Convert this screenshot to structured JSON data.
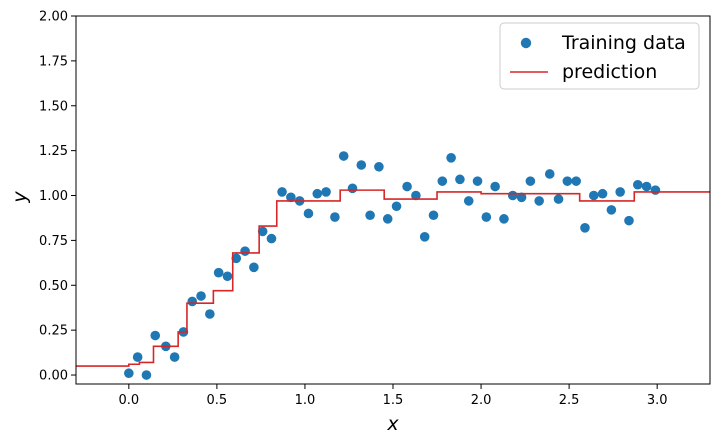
{
  "chart_data": {
    "type": "scatter",
    "title": "",
    "xlabel": "x",
    "ylabel": "y",
    "xlim": [
      -0.3,
      3.3
    ],
    "ylim": [
      -0.05,
      2.0
    ],
    "x_ticks": [
      "0.0",
      "0.5",
      "1.0",
      "1.5",
      "2.0",
      "2.5",
      "3.0"
    ],
    "y_ticks": [
      "0.00",
      "0.25",
      "0.50",
      "0.75",
      "1.00",
      "1.25",
      "1.50",
      "1.75",
      "2.00"
    ],
    "grid": false,
    "legend_position": "top-right",
    "colors": {
      "training": "#1f77b4",
      "prediction": "#d62728"
    },
    "series": [
      {
        "name": "Training data",
        "kind": "scatter",
        "points": [
          [
            0.0,
            0.01
          ],
          [
            0.05,
            0.1
          ],
          [
            0.1,
            0.0
          ],
          [
            0.15,
            0.22
          ],
          [
            0.21,
            0.16
          ],
          [
            0.26,
            0.1
          ],
          [
            0.31,
            0.24
          ],
          [
            0.36,
            0.41
          ],
          [
            0.41,
            0.44
          ],
          [
            0.46,
            0.34
          ],
          [
            0.51,
            0.57
          ],
          [
            0.56,
            0.55
          ],
          [
            0.61,
            0.65
          ],
          [
            0.66,
            0.69
          ],
          [
            0.71,
            0.6
          ],
          [
            0.76,
            0.8
          ],
          [
            0.81,
            0.76
          ],
          [
            0.87,
            1.02
          ],
          [
            0.92,
            0.99
          ],
          [
            0.97,
            0.97
          ],
          [
            1.02,
            0.9
          ],
          [
            1.07,
            1.01
          ],
          [
            1.12,
            1.02
          ],
          [
            1.17,
            0.88
          ],
          [
            1.22,
            1.22
          ],
          [
            1.27,
            1.04
          ],
          [
            1.32,
            1.17
          ],
          [
            1.37,
            0.89
          ],
          [
            1.42,
            1.16
          ],
          [
            1.47,
            0.87
          ],
          [
            1.52,
            0.94
          ],
          [
            1.58,
            1.05
          ],
          [
            1.63,
            1.0
          ],
          [
            1.68,
            0.77
          ],
          [
            1.73,
            0.89
          ],
          [
            1.78,
            1.08
          ],
          [
            1.83,
            1.21
          ],
          [
            1.88,
            1.09
          ],
          [
            1.93,
            0.97
          ],
          [
            1.98,
            1.08
          ],
          [
            2.03,
            0.88
          ],
          [
            2.08,
            1.05
          ],
          [
            2.13,
            0.87
          ],
          [
            2.18,
            1.0
          ],
          [
            2.23,
            0.99
          ],
          [
            2.28,
            1.08
          ],
          [
            2.33,
            0.97
          ],
          [
            2.39,
            1.12
          ],
          [
            2.44,
            0.98
          ],
          [
            2.49,
            1.08
          ],
          [
            2.54,
            1.08
          ],
          [
            2.59,
            0.82
          ],
          [
            2.64,
            1.0
          ],
          [
            2.69,
            1.01
          ],
          [
            2.74,
            0.92
          ],
          [
            2.79,
            1.02
          ],
          [
            2.84,
            0.86
          ],
          [
            2.89,
            1.06
          ],
          [
            2.94,
            1.05
          ],
          [
            2.99,
            1.03
          ]
        ]
      },
      {
        "name": "prediction",
        "kind": "step",
        "points": [
          [
            -0.3,
            0.05
          ],
          [
            0.0,
            0.05
          ],
          [
            0.0,
            0.06
          ],
          [
            0.06,
            0.06
          ],
          [
            0.06,
            0.07
          ],
          [
            0.14,
            0.07
          ],
          [
            0.14,
            0.16
          ],
          [
            0.28,
            0.16
          ],
          [
            0.28,
            0.24
          ],
          [
            0.33,
            0.24
          ],
          [
            0.33,
            0.4
          ],
          [
            0.48,
            0.4
          ],
          [
            0.48,
            0.47
          ],
          [
            0.59,
            0.47
          ],
          [
            0.59,
            0.68
          ],
          [
            0.74,
            0.68
          ],
          [
            0.74,
            0.83
          ],
          [
            0.84,
            0.83
          ],
          [
            0.84,
            0.97
          ],
          [
            1.2,
            0.97
          ],
          [
            1.2,
            1.03
          ],
          [
            1.45,
            1.03
          ],
          [
            1.45,
            0.98
          ],
          [
            1.75,
            0.98
          ],
          [
            1.75,
            1.02
          ],
          [
            2.0,
            1.02
          ],
          [
            2.0,
            1.01
          ],
          [
            2.56,
            1.01
          ],
          [
            2.56,
            0.97
          ],
          [
            2.87,
            0.97
          ],
          [
            2.87,
            1.02
          ],
          [
            3.3,
            1.02
          ]
        ]
      }
    ]
  }
}
